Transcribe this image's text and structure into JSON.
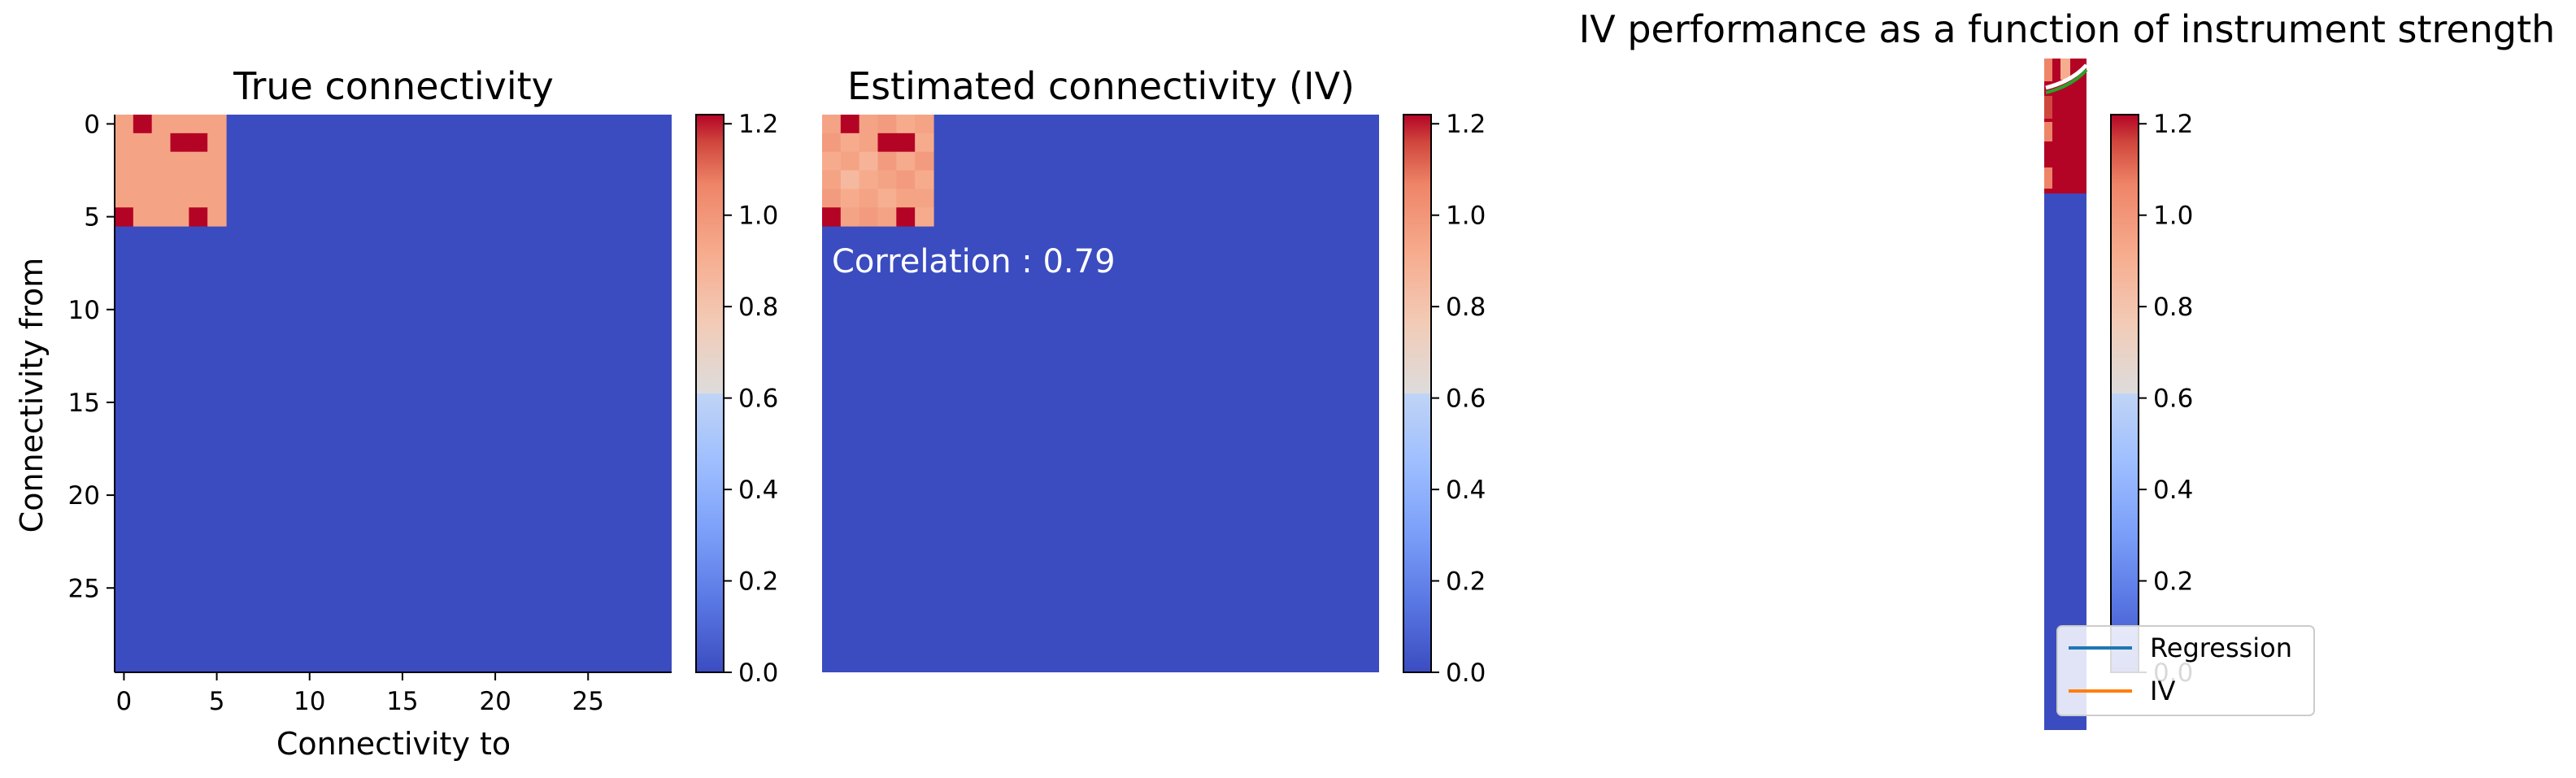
{
  "colors": {
    "low": "#3b4cc0",
    "high": "#b40426",
    "regression": "#1f77b4",
    "iv": "#ff7f0e"
  },
  "chart_data": [
    {
      "type": "heatmap",
      "title": "True connectivity",
      "xlabel": "Connectivity to",
      "ylabel": "Connectivity from",
      "size": 30,
      "x_ticks": [
        0,
        5,
        10,
        15,
        20,
        25
      ],
      "y_ticks": [
        0,
        5,
        10,
        15,
        20,
        25
      ],
      "colorbar": {
        "range": [
          0,
          1.22
        ],
        "ticks": [
          "0.0",
          "0.2",
          "0.4",
          "0.6",
          "0.8",
          "1.0",
          "1.2"
        ]
      },
      "background_value": 0.0,
      "block_rows": 6,
      "block_cols": 6,
      "block": [
        [
          0.95,
          1.22,
          0.95,
          0.95,
          0.95,
          0.95
        ],
        [
          0.95,
          0.95,
          0.95,
          1.22,
          1.22,
          0.95
        ],
        [
          0.95,
          0.95,
          0.95,
          0.95,
          0.95,
          0.95
        ],
        [
          0.95,
          0.95,
          0.95,
          0.95,
          0.95,
          0.95
        ],
        [
          0.95,
          0.95,
          0.95,
          0.95,
          0.95,
          0.95
        ],
        [
          1.22,
          0.95,
          0.95,
          0.95,
          1.22,
          0.95
        ]
      ]
    },
    {
      "type": "heatmap",
      "title": "Estimated connectivity (IV)",
      "annotation": "Correlation : 0.79",
      "size": 30,
      "colorbar": {
        "range": [
          0,
          1.22
        ],
        "ticks": [
          "0.0",
          "0.2",
          "0.4",
          "0.6",
          "0.8",
          "1.0",
          "1.2"
        ]
      },
      "background_value": 0.0,
      "block_rows": 6,
      "block_cols": 6,
      "block": [
        [
          0.95,
          1.22,
          0.95,
          0.98,
          0.92,
          0.95
        ],
        [
          0.98,
          0.92,
          0.95,
          1.22,
          1.22,
          0.92
        ],
        [
          0.92,
          0.95,
          0.88,
          0.98,
          0.92,
          0.98
        ],
        [
          0.95,
          0.85,
          0.92,
          0.95,
          0.98,
          0.92
        ],
        [
          0.98,
          0.92,
          0.95,
          0.9,
          0.95,
          0.95
        ],
        [
          1.22,
          0.95,
          0.98,
          0.95,
          1.22,
          0.92
        ]
      ]
    },
    {
      "type": "line",
      "title": "IV performance as a function of instrument strength",
      "colorbar": {
        "range": [
          0,
          1.22
        ],
        "ticks": [
          "0.0",
          "0.2",
          "0.4",
          "0.6",
          "0.8",
          "1.0",
          "1.2"
        ]
      },
      "series": [
        {
          "name": "Regression"
        },
        {
          "name": "IV"
        }
      ],
      "legend": "lower-center"
    }
  ]
}
